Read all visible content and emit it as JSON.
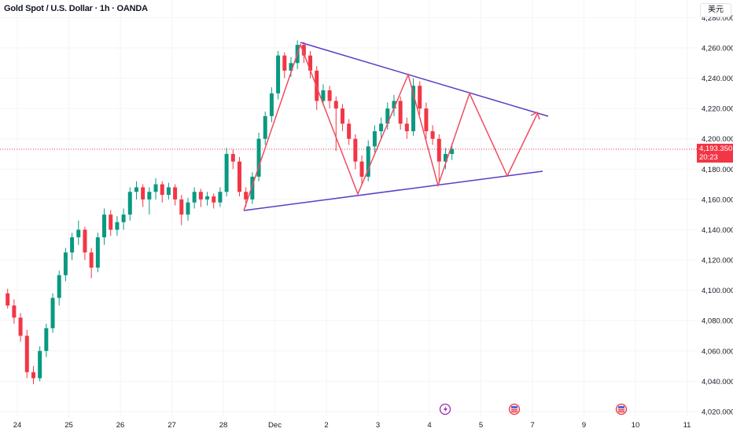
{
  "header": {
    "title": "Gold Spot / U.S. Dollar · 1h · OANDA",
    "currency_button": "美元"
  },
  "current_price": {
    "value": "4,193.350",
    "countdown": "20:23"
  },
  "colors": {
    "up": "#089981",
    "down": "#f23645",
    "trendline": "#5b3cc4",
    "projection": "#ef4d5f",
    "grid": "#f2f4f8"
  },
  "events": [
    {
      "icon": "lightning-event-icon",
      "day": "4"
    },
    {
      "icon": "us-flag-event-icon",
      "day": "5"
    },
    {
      "icon": "us-flag-event-icon",
      "day": "9"
    }
  ],
  "chart_data": {
    "type": "candlestick",
    "title": "Gold Spot / U.S. Dollar · 1h · OANDA",
    "x_ticks": [
      "24",
      "25",
      "26",
      "27",
      "28",
      "Dec",
      "2",
      "3",
      "4",
      "5",
      "7",
      "9",
      "10",
      "11"
    ],
    "y_ticks": [
      "4,280.000",
      "4,260.000",
      "4,240.000",
      "4,220.000",
      "4,200.000",
      "4,180.000",
      "4,160.000",
      "4,140.000",
      "4,120.000",
      "4,100.000",
      "4,080.000",
      "4,060.000",
      "4,040.000",
      "4,020.000"
    ],
    "ylim": [
      4020,
      4280
    ],
    "candle_interval_hours": 3,
    "days": [
      {
        "day": "23",
        "ohlc": [
          [
            4098,
            4101,
            4088,
            4090
          ],
          [
            4090,
            4094,
            4078,
            4082
          ]
        ]
      },
      {
        "day": "24",
        "ohlc": [
          [
            4082,
            4085,
            4066,
            4070
          ],
          [
            4070,
            4074,
            4042,
            4046
          ],
          [
            4046,
            4050,
            4038,
            4042
          ],
          [
            4042,
            4063,
            4040,
            4060
          ],
          [
            4060,
            4078,
            4056,
            4075
          ],
          [
            4075,
            4098,
            4072,
            4095
          ],
          [
            4095,
            4113,
            4090,
            4110
          ],
          [
            4110,
            4128,
            4106,
            4125
          ]
        ]
      },
      {
        "day": "25",
        "ohlc": [
          [
            4125,
            4138,
            4120,
            4135
          ],
          [
            4135,
            4146,
            4130,
            4140
          ],
          [
            4140,
            4142,
            4120,
            4125
          ],
          [
            4125,
            4128,
            4108,
            4115
          ],
          [
            4115,
            4138,
            4112,
            4135
          ],
          [
            4135,
            4154,
            4130,
            4150
          ],
          [
            4150,
            4153,
            4136,
            4140
          ],
          [
            4140,
            4149,
            4136,
            4145
          ]
        ]
      },
      {
        "day": "26",
        "ohlc": [
          [
            4145,
            4154,
            4140,
            4150
          ],
          [
            4150,
            4168,
            4146,
            4165
          ],
          [
            4165,
            4172,
            4160,
            4168
          ],
          [
            4168,
            4170,
            4155,
            4160
          ],
          [
            4160,
            4168,
            4150,
            4165
          ],
          [
            4165,
            4174,
            4160,
            4170
          ],
          [
            4170,
            4172,
            4158,
            4163
          ],
          [
            4163,
            4171,
            4160,
            4168
          ]
        ]
      },
      {
        "day": "27",
        "ohlc": [
          [
            4168,
            4170,
            4156,
            4160
          ],
          [
            4160,
            4163,
            4143,
            4150
          ],
          [
            4150,
            4161,
            4146,
            4158
          ],
          [
            4158,
            4168,
            4154,
            4165
          ],
          [
            4165,
            4167,
            4155,
            4160
          ],
          [
            4160,
            4165,
            4156,
            4162
          ],
          [
            4162,
            4164,
            4154,
            4158
          ],
          [
            4158,
            4168,
            4155,
            4165
          ]
        ]
      },
      {
        "day": "28",
        "ohlc": [
          [
            4165,
            4194,
            4162,
            4190
          ],
          [
            4190,
            4193,
            4180,
            4185
          ],
          [
            4185,
            4188,
            4162,
            4165
          ],
          [
            4165,
            4168,
            4155,
            4160
          ],
          [
            4160,
            4178,
            4157,
            4175
          ],
          [
            4175,
            4204,
            4172,
            4200
          ],
          [
            4200,
            4218,
            4196,
            4215
          ],
          [
            4215,
            4234,
            4211,
            4230
          ]
        ]
      },
      {
        "day": "Dec",
        "ohlc": [
          [
            4230,
            4258,
            4226,
            4255
          ],
          [
            4255,
            4257,
            4240,
            4245
          ],
          [
            4245,
            4254,
            4241,
            4250
          ],
          [
            4250,
            4265,
            4246,
            4262
          ],
          [
            4262,
            4264,
            4250,
            4255
          ],
          [
            4255,
            4258,
            4240,
            4245
          ],
          [
            4245,
            4248,
            4219,
            4225
          ],
          [
            4225,
            4236,
            4222,
            4232
          ]
        ]
      },
      {
        "day": "2",
        "ohlc": [
          [
            4232,
            4235,
            4220,
            4225
          ],
          [
            4225,
            4228,
            4192,
            4220
          ],
          [
            4220,
            4223,
            4205,
            4210
          ],
          [
            4210,
            4213,
            4196,
            4200
          ],
          [
            4200,
            4203,
            4180,
            4185
          ],
          [
            4185,
            4189,
            4170,
            4175
          ],
          [
            4175,
            4199,
            4172,
            4195
          ],
          [
            4195,
            4209,
            4191,
            4205
          ]
        ]
      },
      {
        "day": "3",
        "ohlc": [
          [
            4205,
            4214,
            4200,
            4210
          ],
          [
            4210,
            4224,
            4206,
            4220
          ],
          [
            4220,
            4229,
            4215,
            4225
          ],
          [
            4225,
            4228,
            4206,
            4210
          ],
          [
            4210,
            4214,
            4200,
            4205
          ],
          [
            4205,
            4240,
            4202,
            4235
          ],
          [
            4235,
            4238,
            4216,
            4220
          ],
          [
            4220,
            4224,
            4200,
            4205
          ]
        ]
      },
      {
        "day": "4",
        "ohlc": [
          [
            4205,
            4209,
            4196,
            4200
          ],
          [
            4200,
            4203,
            4172,
            4185
          ],
          [
            4185,
            4194,
            4180,
            4190
          ],
          [
            4190,
            4197,
            4186,
            4193.35
          ]
        ]
      }
    ]
  }
}
